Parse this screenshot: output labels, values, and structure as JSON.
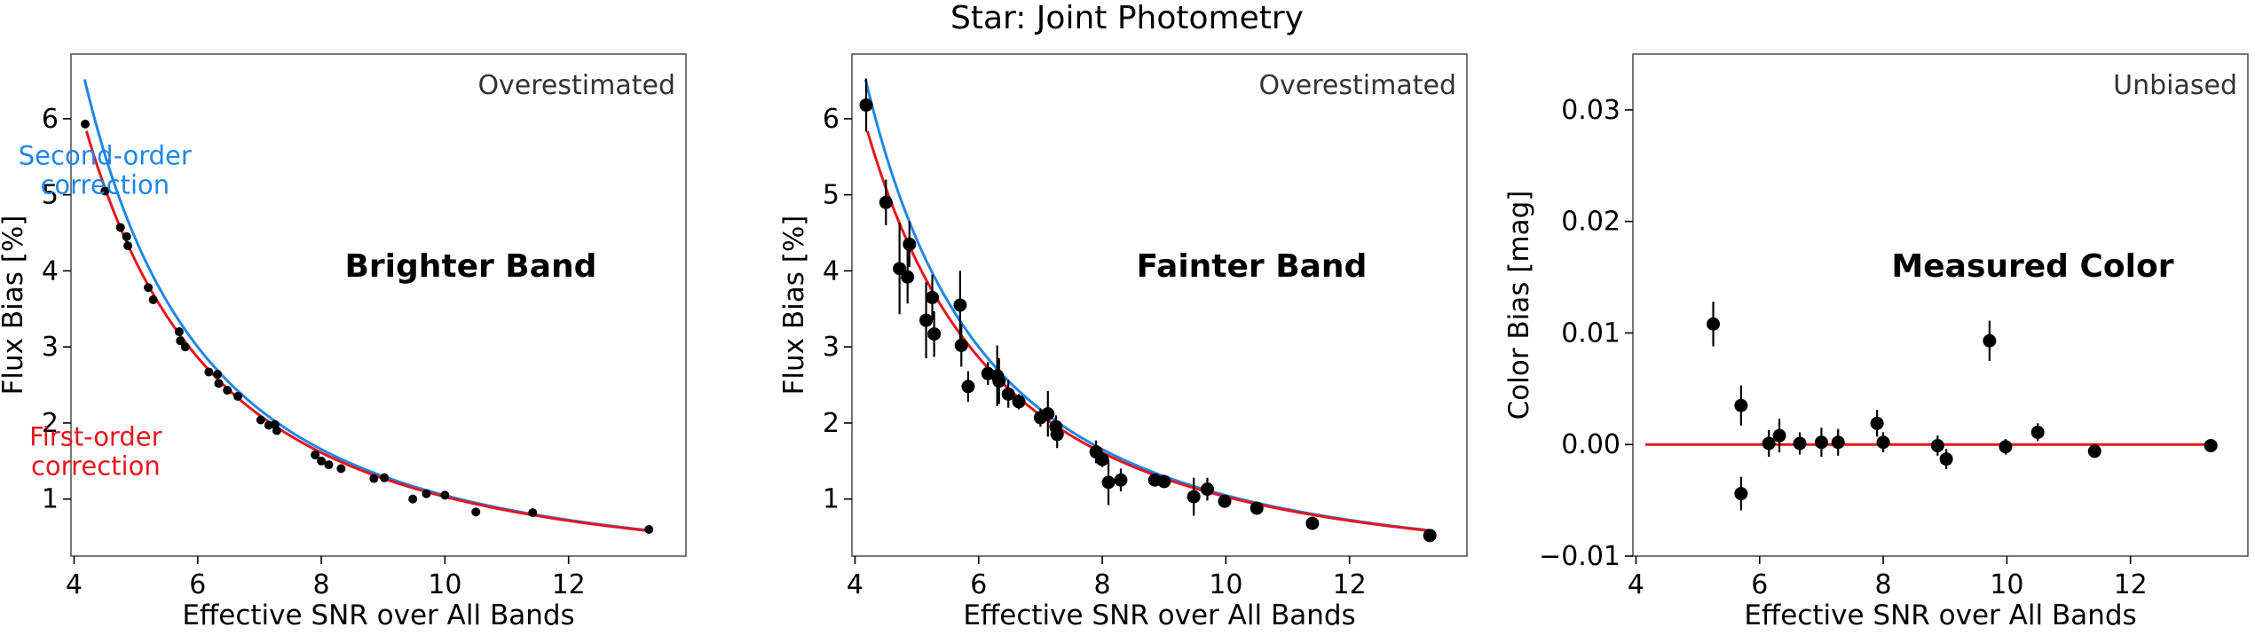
{
  "figure": {
    "suptitle": "Star: Joint Photometry"
  },
  "colors": {
    "first_order": "#e8141e",
    "second_order": "#1f86e8",
    "zero_line": "#e8141e",
    "points": "#000000",
    "frame": "#555555"
  },
  "chart_data": [
    {
      "type": "scatter",
      "title": "",
      "xlabel": "Effective SNR over All Bands",
      "ylabel": "Flux Bias [%]",
      "xlim": [
        3.95,
        13.9
      ],
      "ylim": [
        0.25,
        6.85
      ],
      "xticks": [
        4,
        6,
        8,
        10,
        12
      ],
      "yticks": [
        1,
        2,
        3,
        4,
        5,
        6
      ],
      "ytick_labels": [
        "1",
        "2",
        "3",
        "4",
        "5",
        "6"
      ],
      "corner_label": "Overestimated",
      "band_label": "Brighter Band",
      "annotations": [
        {
          "text": [
            "Second-order",
            "correction"
          ],
          "color": "second_order",
          "at": [
            4.5,
            5.4
          ]
        },
        {
          "text": [
            "First-order",
            "correction"
          ],
          "color": "first_order",
          "at": [
            4.35,
            1.7
          ]
        }
      ],
      "series": [
        {
          "name": "Second-order correction",
          "kind": "curve",
          "color_key": "second_order",
          "coef_a": 1.03,
          "coef_b": 1.8,
          "x_from": 4.17,
          "x_to": 13.3
        },
        {
          "name": "First-order correction",
          "kind": "curve",
          "color_key": "first_order",
          "coef_a": 1.03,
          "coef_b": 0,
          "x_from": 4.2,
          "x_to": 13.3
        },
        {
          "kind": "points",
          "marker": "small",
          "points": [
            {
              "x": 4.18,
              "y": 5.93,
              "err": 0.04
            },
            {
              "x": 4.5,
              "y": 5.05,
              "err": 0.03
            },
            {
              "x": 4.75,
              "y": 4.57,
              "err": 0.03
            },
            {
              "x": 4.85,
              "y": 4.45,
              "err": 0.03
            },
            {
              "x": 4.87,
              "y": 4.33,
              "err": 0.03
            },
            {
              "x": 5.2,
              "y": 3.78,
              "err": 0.03
            },
            {
              "x": 5.28,
              "y": 3.62,
              "err": 0.03
            },
            {
              "x": 5.7,
              "y": 3.2,
              "err": 0.03
            },
            {
              "x": 5.72,
              "y": 3.08,
              "err": 0.03
            },
            {
              "x": 5.8,
              "y": 3.0,
              "err": 0.03
            },
            {
              "x": 6.18,
              "y": 2.67,
              "err": 0.03
            },
            {
              "x": 6.32,
              "y": 2.64,
              "err": 0.03
            },
            {
              "x": 6.34,
              "y": 2.52,
              "err": 0.03
            },
            {
              "x": 6.48,
              "y": 2.43,
              "err": 0.03
            },
            {
              "x": 6.65,
              "y": 2.35,
              "err": 0.03
            },
            {
              "x": 7.02,
              "y": 2.04,
              "err": 0.02
            },
            {
              "x": 7.15,
              "y": 1.97,
              "err": 0.02
            },
            {
              "x": 7.25,
              "y": 1.98,
              "err": 0.02
            },
            {
              "x": 7.28,
              "y": 1.9,
              "err": 0.02
            },
            {
              "x": 7.9,
              "y": 1.58,
              "err": 0.02
            },
            {
              "x": 8.0,
              "y": 1.5,
              "err": 0.02
            },
            {
              "x": 8.12,
              "y": 1.45,
              "err": 0.02
            },
            {
              "x": 8.32,
              "y": 1.4,
              "err": 0.02
            },
            {
              "x": 8.85,
              "y": 1.27,
              "err": 0.02
            },
            {
              "x": 9.02,
              "y": 1.28,
              "err": 0.02
            },
            {
              "x": 9.48,
              "y": 1.0,
              "err": 0.02
            },
            {
              "x": 9.7,
              "y": 1.07,
              "err": 0.02
            },
            {
              "x": 10.0,
              "y": 1.05,
              "err": 0.02
            },
            {
              "x": 10.5,
              "y": 0.83,
              "err": 0.02
            },
            {
              "x": 11.42,
              "y": 0.82,
              "err": 0.02
            },
            {
              "x": 13.3,
              "y": 0.6,
              "err": 0.02
            }
          ]
        }
      ]
    },
    {
      "type": "scatter",
      "title": "",
      "xlabel": "Effective SNR over All Bands",
      "ylabel": "Flux Bias [%]",
      "xlim": [
        3.95,
        13.9
      ],
      "ylim": [
        0.25,
        6.85
      ],
      "xticks": [
        4,
        6,
        8,
        10,
        12
      ],
      "yticks": [
        1,
        2,
        3,
        4,
        5,
        6
      ],
      "ytick_labels": [
        "1",
        "2",
        "3",
        "4",
        "5",
        "6"
      ],
      "corner_label": "Overestimated",
      "band_label": "Fainter Band",
      "annotations": [],
      "series": [
        {
          "name": "Second-order correction",
          "kind": "curve",
          "color_key": "second_order",
          "coef_a": 1.03,
          "coef_b": 1.8,
          "x_from": 4.17,
          "x_to": 13.3
        },
        {
          "name": "First-order correction",
          "kind": "curve",
          "color_key": "first_order",
          "coef_a": 1.03,
          "coef_b": 0,
          "x_from": 4.2,
          "x_to": 13.3
        },
        {
          "kind": "points",
          "marker": "large",
          "points": [
            {
              "x": 4.18,
              "y": 6.18,
              "err": 0.35
            },
            {
              "x": 4.5,
              "y": 4.9,
              "err": 0.3
            },
            {
              "x": 4.72,
              "y": 4.03,
              "err": 0.6
            },
            {
              "x": 4.85,
              "y": 3.92,
              "err": 0.35
            },
            {
              "x": 4.88,
              "y": 4.35,
              "err": 0.3
            },
            {
              "x": 5.15,
              "y": 3.35,
              "err": 0.5
            },
            {
              "x": 5.25,
              "y": 3.65,
              "err": 0.3
            },
            {
              "x": 5.28,
              "y": 3.17,
              "err": 0.3
            },
            {
              "x": 5.7,
              "y": 3.55,
              "err": 0.45
            },
            {
              "x": 5.72,
              "y": 3.02,
              "err": 0.28
            },
            {
              "x": 5.83,
              "y": 2.48,
              "err": 0.2
            },
            {
              "x": 6.15,
              "y": 2.65,
              "err": 0.15
            },
            {
              "x": 6.3,
              "y": 2.62,
              "err": 0.4
            },
            {
              "x": 6.33,
              "y": 2.55,
              "err": 0.3
            },
            {
              "x": 6.48,
              "y": 2.38,
              "err": 0.18
            },
            {
              "x": 6.65,
              "y": 2.28,
              "err": 0.1
            },
            {
              "x": 7.0,
              "y": 2.07,
              "err": 0.12
            },
            {
              "x": 7.12,
              "y": 2.12,
              "err": 0.3
            },
            {
              "x": 7.25,
              "y": 1.95,
              "err": 0.15
            },
            {
              "x": 7.27,
              "y": 1.85,
              "err": 0.18
            },
            {
              "x": 7.9,
              "y": 1.62,
              "err": 0.15
            },
            {
              "x": 8.0,
              "y": 1.52,
              "err": 0.1
            },
            {
              "x": 8.1,
              "y": 1.22,
              "err": 0.3
            },
            {
              "x": 8.3,
              "y": 1.25,
              "err": 0.15
            },
            {
              "x": 8.85,
              "y": 1.25,
              "err": 0.08
            },
            {
              "x": 9.0,
              "y": 1.23,
              "err": 0.08
            },
            {
              "x": 9.48,
              "y": 1.03,
              "err": 0.25
            },
            {
              "x": 9.7,
              "y": 1.13,
              "err": 0.15
            },
            {
              "x": 9.98,
              "y": 0.97,
              "err": 0.08
            },
            {
              "x": 10.5,
              "y": 0.88,
              "err": 0.06
            },
            {
              "x": 11.4,
              "y": 0.68,
              "err": 0.05
            },
            {
              "x": 13.3,
              "y": 0.52,
              "err": 0.05
            }
          ]
        }
      ]
    },
    {
      "type": "scatter",
      "title": "",
      "xlabel": "Effective SNR over All Bands",
      "ylabel": "Color Bias [mag]",
      "xlim": [
        3.95,
        13.9
      ],
      "ylim": [
        -0.01,
        0.035
      ],
      "xticks": [
        4,
        6,
        8,
        10,
        12
      ],
      "yticks": [
        -0.01,
        0.0,
        0.01,
        0.02,
        0.03
      ],
      "ytick_labels": [
        "−0.01",
        "0.00",
        "0.01",
        "0.02",
        "0.03"
      ],
      "corner_label": "Unbiased",
      "band_label": "Measured Color",
      "annotations": [],
      "series": [
        {
          "kind": "hline",
          "color_key": "zero_line",
          "y": 0.0,
          "x_from": 4.15,
          "x_to": 13.4
        },
        {
          "kind": "points",
          "marker": "large",
          "points": [
            {
              "x": 5.25,
              "y": 0.0108,
              "err": 0.002
            },
            {
              "x": 5.7,
              "y": 0.0035,
              "err": 0.0018
            },
            {
              "x": 5.7,
              "y": -0.0044,
              "err": 0.0015
            },
            {
              "x": 6.15,
              "y": 0.0001,
              "err": 0.0012
            },
            {
              "x": 6.32,
              "y": 0.0008,
              "err": 0.0015
            },
            {
              "x": 6.65,
              "y": 0.0001,
              "err": 0.001
            },
            {
              "x": 7.0,
              "y": 0.0002,
              "err": 0.0013
            },
            {
              "x": 7.27,
              "y": 0.0002,
              "err": 0.0012
            },
            {
              "x": 7.9,
              "y": 0.0019,
              "err": 0.0012
            },
            {
              "x": 8.0,
              "y": 0.0002,
              "err": 0.0009
            },
            {
              "x": 8.88,
              "y": -0.0001,
              "err": 0.0009
            },
            {
              "x": 9.02,
              "y": -0.0013,
              "err": 0.0009
            },
            {
              "x": 9.72,
              "y": 0.0093,
              "err": 0.0018
            },
            {
              "x": 9.98,
              "y": -0.0002,
              "err": 0.0007
            },
            {
              "x": 10.5,
              "y": 0.0011,
              "err": 0.0008
            },
            {
              "x": 11.42,
              "y": -0.0006,
              "err": 0.0006
            },
            {
              "x": 13.3,
              "y": -0.0001,
              "err": 0.0005
            }
          ]
        }
      ]
    }
  ]
}
